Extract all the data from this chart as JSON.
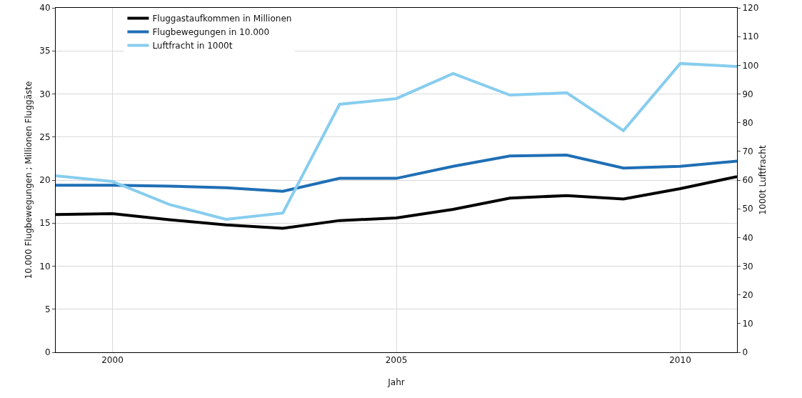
{
  "chart_data": {
    "type": "line",
    "xlabel": "Jahr",
    "ylabel": "10.000 Flugbewegungen ; Millionen Fluggäste",
    "y2label": "1000t Luftfracht",
    "x": [
      1999,
      2000,
      2001,
      2002,
      2003,
      2004,
      2005,
      2006,
      2007,
      2008,
      2009,
      2010,
      2011
    ],
    "xlim": [
      1999,
      2011
    ],
    "xticks": [
      2000,
      2005,
      2010
    ],
    "ylim": [
      0,
      40
    ],
    "yticks": [
      0,
      5,
      10,
      15,
      20,
      25,
      30,
      35,
      40
    ],
    "y2lim": [
      0,
      120
    ],
    "y2ticks": [
      0,
      10,
      20,
      30,
      40,
      50,
      60,
      70,
      80,
      90,
      100,
      110,
      120
    ],
    "grid": true,
    "legend": "top left",
    "marker": "none",
    "line_style": "solid",
    "series": [
      {
        "name": "Fluggastaufkommen in Millionen",
        "color": "#000000",
        "values": [
          16.0,
          16.1,
          15.4,
          14.8,
          14.4,
          15.3,
          15.6,
          16.6,
          17.9,
          18.2,
          17.8,
          19.0,
          20.4
        ]
      },
      {
        "name": "Flugbewegungen in 10.000",
        "color": "#1f6fb5",
        "values": [
          19.4,
          19.4,
          19.3,
          19.1,
          18.7,
          20.2,
          20.2,
          21.6,
          22.8,
          22.9,
          21.4,
          21.6,
          22.2
        ]
      },
      {
        "name": "Luftfracht in 1000t",
        "color": "#87cdee",
        "axis": "y2",
        "values": [
          61.5,
          59.5,
          51.5,
          46.3,
          48.5,
          86.4,
          88.4,
          97.1,
          89.6,
          90.4,
          77.2,
          100.6,
          99.6
        ]
      }
    ]
  }
}
